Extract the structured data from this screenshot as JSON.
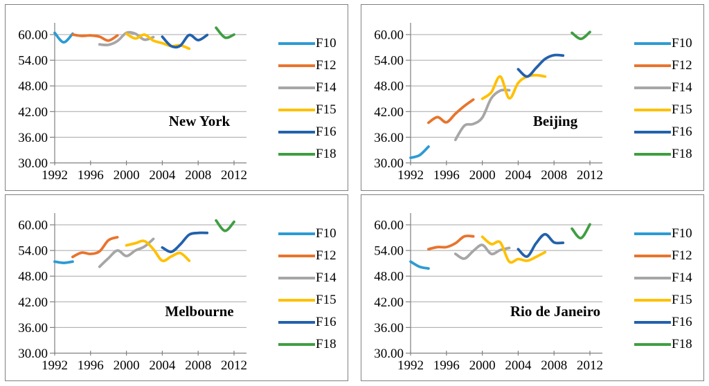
{
  "style": {
    "background": "#FFFFFF",
    "panel_border_color": "#7F7F7F",
    "grid_color": "#A6A6A6",
    "axis_color": "#808080",
    "text_color": "#000000",
    "series_palette": {
      "F10": "#2D9BD3",
      "F12": "#E8742D",
      "F14": "#A6A6A6",
      "F15": "#FFC000",
      "F16": "#2361AC",
      "F18": "#3F9E41"
    }
  },
  "chart_data": [
    {
      "type": "line",
      "title": "New York",
      "xlabel": "",
      "ylabel": "",
      "x_ticks": [
        1992,
        1996,
        2000,
        2004,
        2008,
        2012
      ],
      "y_ticks": [
        60,
        54,
        48,
        42,
        36,
        30
      ],
      "y_tick_labels": [
        "60.00",
        "54.00",
        "48.00",
        "42.00",
        "36.00",
        "30.00"
      ],
      "xlim": [
        1992,
        2013.4
      ],
      "ylim": [
        30,
        62.8
      ],
      "grid": true,
      "legend_position": "right",
      "series": [
        {
          "name": "F10",
          "color": "#2D9BD3",
          "x": [
            1992,
            1993,
            1994
          ],
          "y": [
            60.4,
            58.2,
            60.2
          ]
        },
        {
          "name": "F12",
          "color": "#E8742D",
          "x": [
            1994,
            1995,
            1996,
            1997,
            1998,
            1999
          ],
          "y": [
            60.0,
            59.7,
            59.8,
            59.5,
            58.6,
            59.8
          ]
        },
        {
          "name": "F14",
          "color": "#A6A6A6",
          "x": [
            1997,
            1998,
            1999,
            2000,
            2001,
            2002,
            2003
          ],
          "y": [
            57.7,
            57.6,
            58.5,
            60.4,
            60.2,
            58.8,
            59.4
          ]
        },
        {
          "name": "F15",
          "color": "#FFC000",
          "x": [
            2000,
            2001,
            2002,
            2003,
            2004,
            2005,
            2006,
            2007
          ],
          "y": [
            60.2,
            59.1,
            60.0,
            58.6,
            58.0,
            57.3,
            57.5,
            56.7
          ]
        },
        {
          "name": "F16",
          "color": "#2361AC",
          "x": [
            2004,
            2005,
            2006,
            2007,
            2008,
            2009
          ],
          "y": [
            59.5,
            57.3,
            57.4,
            59.9,
            58.7,
            59.9
          ]
        },
        {
          "name": "F18",
          "color": "#3F9E41",
          "x": [
            2010,
            2011,
            2012
          ],
          "y": [
            61.6,
            59.3,
            60.0
          ]
        }
      ]
    },
    {
      "type": "line",
      "title": "Beijing",
      "xlabel": "",
      "ylabel": "",
      "x_ticks": [
        1992,
        1996,
        2000,
        2004,
        2008,
        2012
      ],
      "y_ticks": [
        60,
        54,
        48,
        42,
        36,
        30
      ],
      "y_tick_labels": [
        "60.00",
        "54.00",
        "48.00",
        "42.00",
        "36.00",
        "30.00"
      ],
      "xlim": [
        1992,
        2013.4
      ],
      "ylim": [
        30,
        62.8
      ],
      "grid": true,
      "legend_position": "right",
      "series": [
        {
          "name": "F10",
          "color": "#2D9BD3",
          "x": [
            1992,
            1993,
            1994
          ],
          "y": [
            31.2,
            31.8,
            33.8
          ]
        },
        {
          "name": "F12",
          "color": "#E8742D",
          "x": [
            1994,
            1995,
            1996,
            1997,
            1998,
            1999
          ],
          "y": [
            39.4,
            40.7,
            39.5,
            41.5,
            43.3,
            44.8
          ]
        },
        {
          "name": "F14",
          "color": "#A6A6A6",
          "x": [
            1997,
            1998,
            1999,
            2000,
            2001,
            2002,
            2003
          ],
          "y": [
            35.4,
            38.7,
            39.1,
            40.6,
            45.1,
            46.9,
            47.0
          ]
        },
        {
          "name": "F15",
          "color": "#FFC000",
          "x": [
            2000,
            2001,
            2002,
            2003,
            2004,
            2005,
            2006,
            2007
          ],
          "y": [
            45.0,
            46.5,
            50.2,
            45.1,
            48.7,
            50.2,
            50.5,
            50.2
          ]
        },
        {
          "name": "F16",
          "color": "#2361AC",
          "x": [
            2004,
            2005,
            2006,
            2007,
            2008,
            2009
          ],
          "y": [
            51.9,
            50.2,
            52.2,
            54.3,
            55.2,
            55.1
          ]
        },
        {
          "name": "F18",
          "color": "#3F9E41",
          "x": [
            2010,
            2011,
            2012
          ],
          "y": [
            60.4,
            59.0,
            60.6
          ]
        }
      ]
    },
    {
      "type": "line",
      "title": "Melbourne",
      "xlabel": "",
      "ylabel": "",
      "x_ticks": [
        1992,
        1996,
        2000,
        2004,
        2008,
        2012
      ],
      "y_ticks": [
        60,
        54,
        48,
        42,
        36,
        30
      ],
      "y_tick_labels": [
        "60.00",
        "54.00",
        "48.00",
        "42.00",
        "36.00",
        "30.00"
      ],
      "xlim": [
        1992,
        2013.4
      ],
      "ylim": [
        30,
        62.8
      ],
      "grid": true,
      "legend_position": "right",
      "series": [
        {
          "name": "F10",
          "color": "#2D9BD3",
          "x": [
            1992,
            1993,
            1994
          ],
          "y": [
            51.4,
            51.1,
            51.4
          ]
        },
        {
          "name": "F12",
          "color": "#E8742D",
          "x": [
            1994,
            1995,
            1996,
            1997,
            1998,
            1999
          ],
          "y": [
            52.5,
            53.5,
            53.2,
            53.8,
            56.4,
            57.1
          ]
        },
        {
          "name": "F14",
          "color": "#A6A6A6",
          "x": [
            1997,
            1998,
            1999,
            2000,
            2001,
            2002,
            2003
          ],
          "y": [
            50.2,
            52.2,
            54.0,
            52.7,
            54.0,
            54.9,
            56.7
          ]
        },
        {
          "name": "F15",
          "color": "#FFC000",
          "x": [
            2000,
            2001,
            2002,
            2003,
            2004,
            2005,
            2006,
            2007
          ],
          "y": [
            55.2,
            55.7,
            56.2,
            54.3,
            51.6,
            52.6,
            53.4,
            51.6
          ]
        },
        {
          "name": "F16",
          "color": "#2361AC",
          "x": [
            2004,
            2005,
            2006,
            2007,
            2008,
            2009
          ],
          "y": [
            54.7,
            53.7,
            55.4,
            57.7,
            58.1,
            58.1
          ]
        },
        {
          "name": "F18",
          "color": "#3F9E41",
          "x": [
            2010,
            2011,
            2012
          ],
          "y": [
            61.0,
            58.6,
            60.7
          ]
        }
      ]
    },
    {
      "type": "line",
      "title": "Rio de Janeiro",
      "xlabel": "",
      "ylabel": "",
      "x_ticks": [
        1992,
        1996,
        2000,
        2004,
        2008,
        2012
      ],
      "y_ticks": [
        60,
        54,
        48,
        42,
        36,
        30
      ],
      "y_tick_labels": [
        "60.00",
        "54.00",
        "48.00",
        "42.00",
        "36.00",
        "30.00"
      ],
      "xlim": [
        1992,
        2013.4
      ],
      "ylim": [
        30,
        62.8
      ],
      "grid": true,
      "legend_position": "right",
      "series": [
        {
          "name": "F10",
          "color": "#2D9BD3",
          "x": [
            1992,
            1993,
            1994
          ],
          "y": [
            51.4,
            50.2,
            49.8
          ]
        },
        {
          "name": "F12",
          "color": "#E8742D",
          "x": [
            1994,
            1995,
            1996,
            1997,
            1998,
            1999
          ],
          "y": [
            54.3,
            54.8,
            54.8,
            55.7,
            57.3,
            57.3
          ]
        },
        {
          "name": "F14",
          "color": "#A6A6A6",
          "x": [
            1997,
            1998,
            1999,
            2000,
            2001,
            2002,
            2003
          ],
          "y": [
            53.2,
            52.1,
            53.9,
            55.3,
            53.2,
            54.1,
            54.6
          ]
        },
        {
          "name": "F15",
          "color": "#FFC000",
          "x": [
            2000,
            2001,
            2002,
            2003,
            2004,
            2005,
            2006,
            2007
          ],
          "y": [
            57.2,
            55.5,
            55.9,
            51.4,
            52.0,
            51.6,
            52.5,
            53.6
          ]
        },
        {
          "name": "F16",
          "color": "#2361AC",
          "x": [
            2004,
            2005,
            2006,
            2007,
            2008,
            2009
          ],
          "y": [
            54.3,
            52.6,
            55.7,
            57.8,
            55.9,
            55.8
          ]
        },
        {
          "name": "F18",
          "color": "#3F9E41",
          "x": [
            2010,
            2011,
            2012
          ],
          "y": [
            59.1,
            56.9,
            60.1
          ]
        }
      ]
    }
  ]
}
